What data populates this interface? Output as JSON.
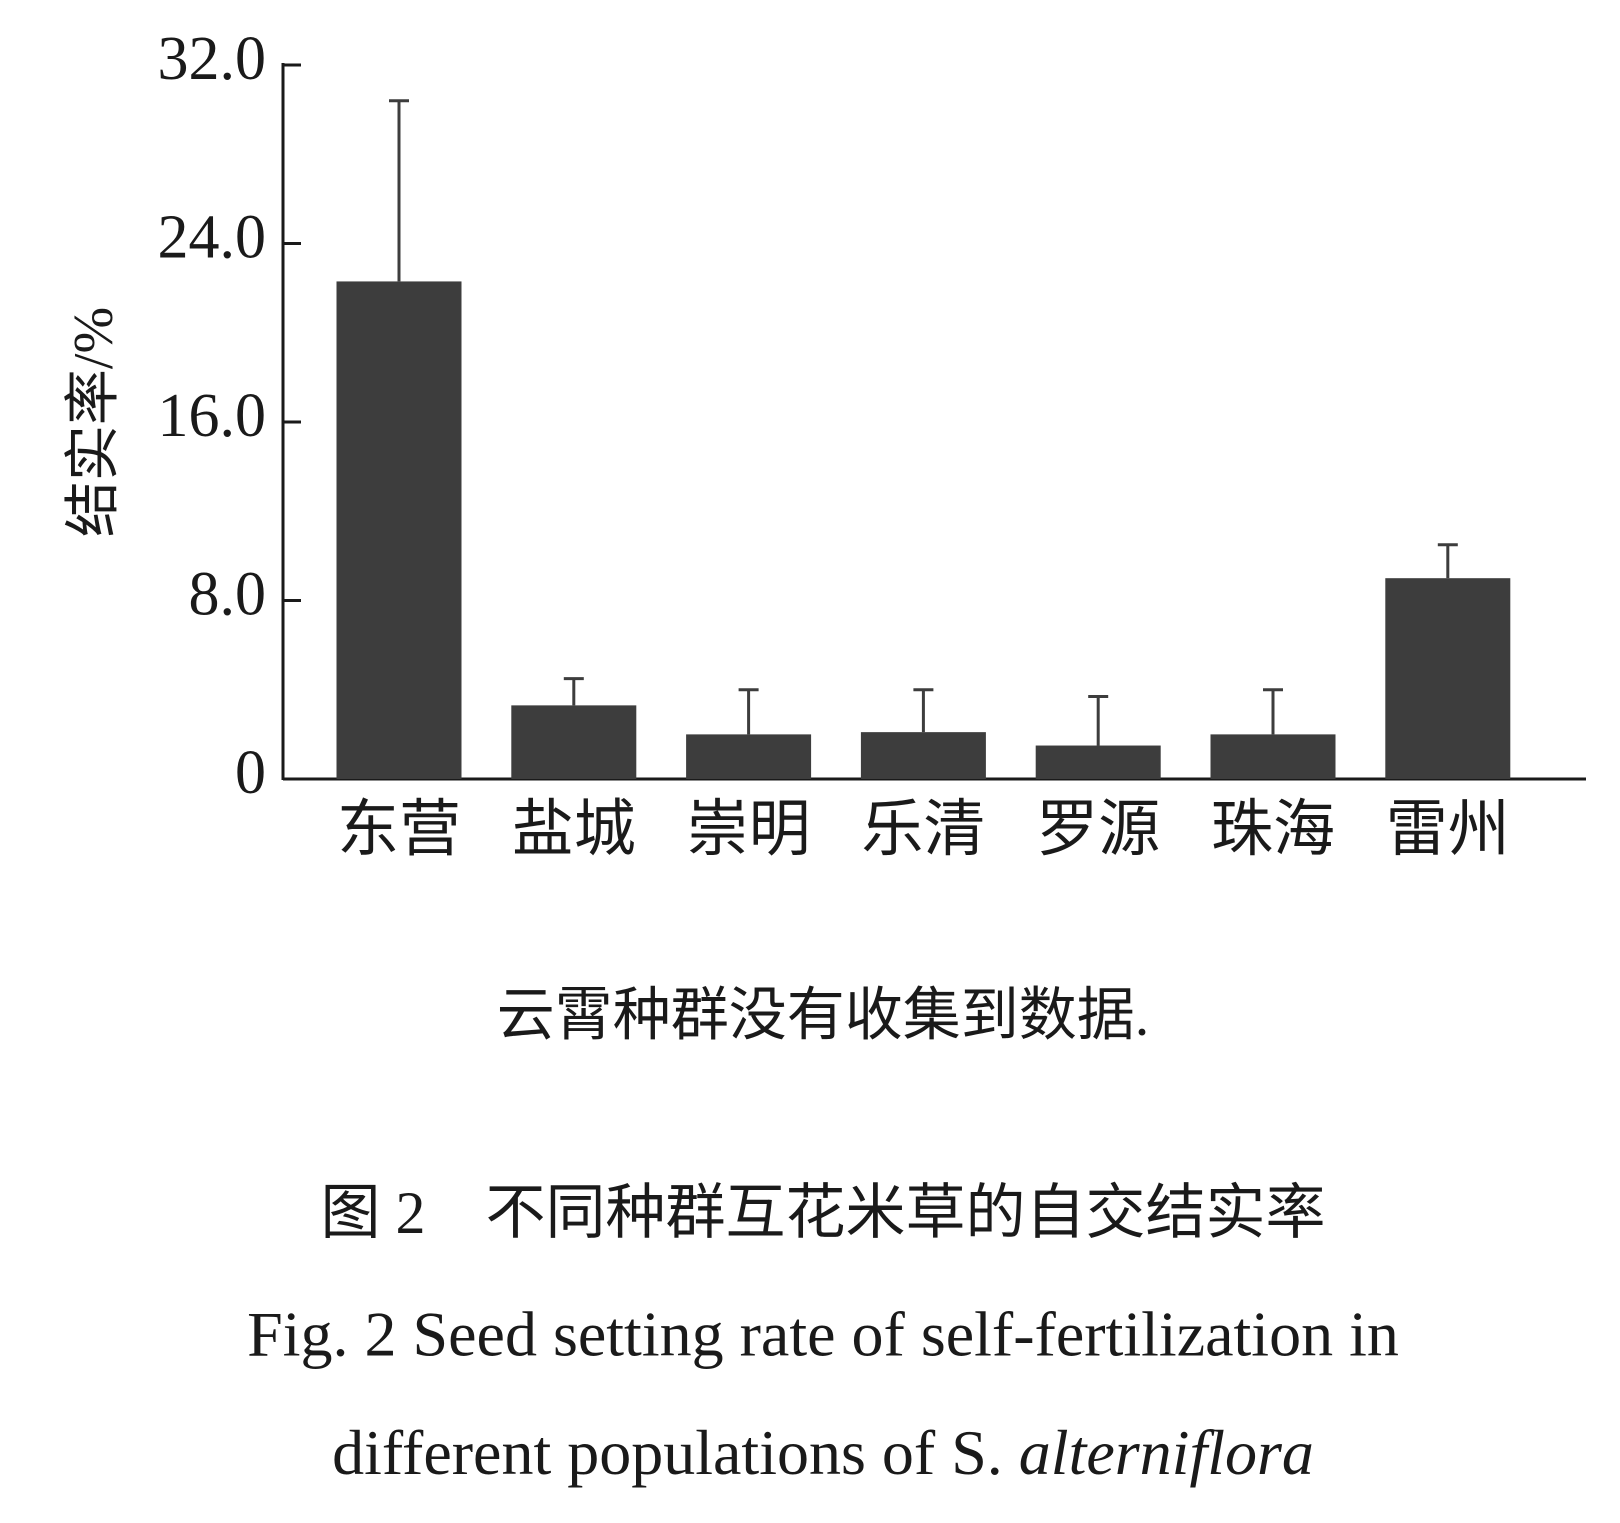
{
  "chart_data": {
    "type": "bar",
    "y_label": "结实率/%",
    "categories": [
      "东营",
      "盐城",
      "崇明",
      "乐清",
      "罗源",
      "珠海",
      "雷州"
    ],
    "values": [
      22.3,
      3.3,
      2.0,
      2.1,
      1.5,
      2.0,
      9.0
    ],
    "errors": [
      8.1,
      1.2,
      2.0,
      1.9,
      2.2,
      2.0,
      1.5
    ],
    "color": "#3d3d3d",
    "ylim": [
      0,
      32
    ],
    "yticks": [
      0,
      {
        "value": 8,
        "label": "8.0"
      },
      {
        "value": 16,
        "label": "16.0"
      },
      {
        "value": 24,
        "label": "24.0"
      },
      {
        "value": 32,
        "label": "32.0"
      }
    ],
    "grid": false,
    "note": "云霄种群没有收集到数据.",
    "caption_cn": "图 2　不同种群互花米草的自交结实率",
    "caption_en_line1": "Fig. 2  Seed setting rate of self-fertilization in",
    "caption_en_line2": "different populations of S.",
    "species": "alterniflora"
  }
}
